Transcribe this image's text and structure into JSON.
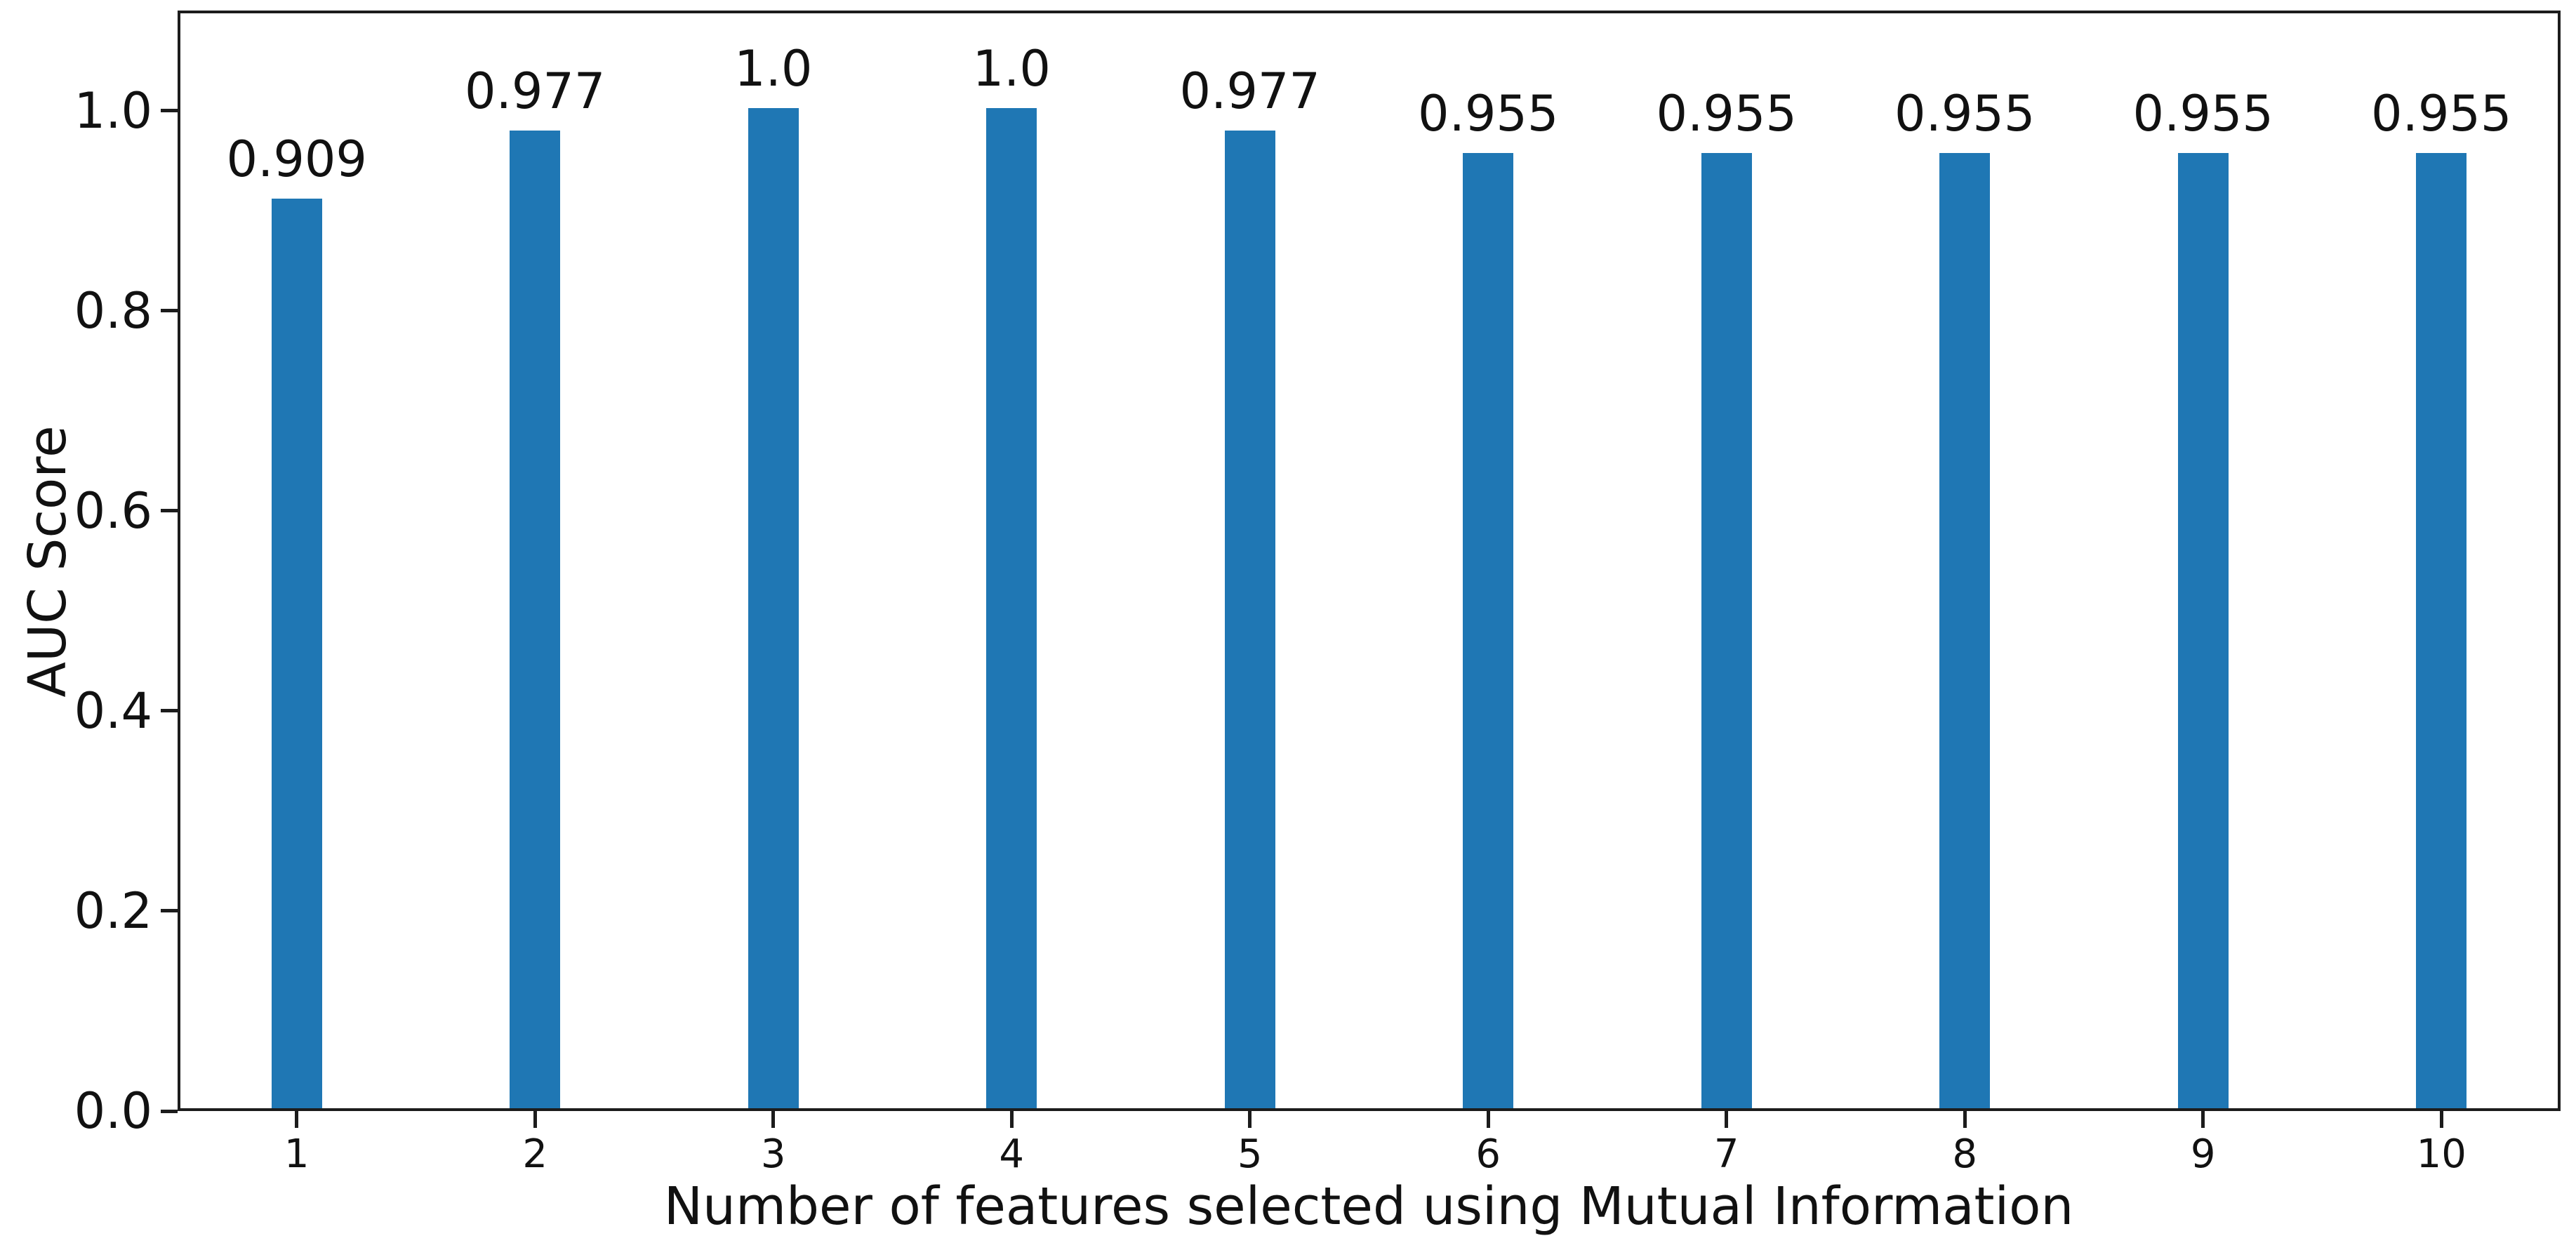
{
  "chart_data": {
    "type": "bar",
    "categories": [
      "1",
      "2",
      "3",
      "4",
      "5",
      "6",
      "7",
      "8",
      "9",
      "10"
    ],
    "values": [
      0.909,
      0.977,
      1.0,
      1.0,
      0.977,
      0.955,
      0.955,
      0.955,
      0.955,
      0.955
    ],
    "bar_labels": [
      "0.909",
      "0.977",
      "1.0",
      "1.0",
      "0.977",
      "0.955",
      "0.955",
      "0.955",
      "0.955",
      "0.955"
    ],
    "title": "",
    "xlabel": "Number of features selected using Mutual Information",
    "ylabel": "AUC Score",
    "ytick_labels": [
      "0.0",
      "0.2",
      "0.4",
      "0.6",
      "0.8",
      "1.0"
    ],
    "ytick_values": [
      0.0,
      0.2,
      0.4,
      0.6,
      0.8,
      1.0
    ],
    "ylim": [
      0,
      1.1
    ],
    "bar_color": "#1f77b4",
    "frame_color": "#1c1c1c",
    "grid": "off",
    "legend": "none"
  }
}
